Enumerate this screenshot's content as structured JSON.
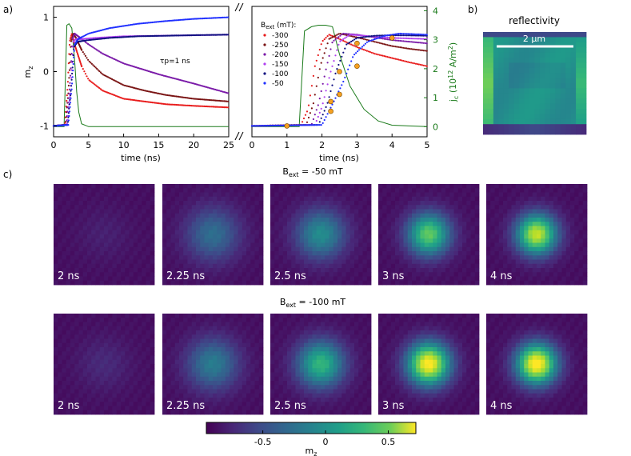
{
  "panels": {
    "a": "a)",
    "b": "b)",
    "c": "c)"
  },
  "chart_data": [
    {
      "type": "scatter",
      "panel": "a-left",
      "xlabel": "time (ns)",
      "ylabel": "m_z",
      "xlim": [
        0,
        25
      ],
      "ylim": [
        -1.2,
        1.2
      ],
      "x_ticks": [
        "0",
        "5",
        "10",
        "15",
        "20",
        "25"
      ],
      "y_ticks": [
        "-1",
        "0",
        "1"
      ],
      "annotation": "τp=1 ns",
      "series": [
        {
          "id": "b300",
          "color": "#e81c1c",
          "x": [
            0,
            1.6,
            2.0,
            2.3,
            2.6,
            3,
            4,
            5,
            7,
            10,
            13,
            16,
            20,
            25
          ],
          "y": [
            -1,
            -0.98,
            -0.3,
            0.55,
            0.7,
            0.5,
            0.1,
            -0.15,
            -0.35,
            -0.5,
            -0.55,
            -0.6,
            -0.63,
            -0.66
          ]
        },
        {
          "id": "b250",
          "color": "#7a1414",
          "x": [
            0,
            1.7,
            2.1,
            2.5,
            2.8,
            3.2,
            4,
            5,
            7,
            10,
            13,
            16,
            20,
            25
          ],
          "y": [
            -1,
            -0.98,
            -0.4,
            0.55,
            0.7,
            0.62,
            0.4,
            0.2,
            -0.05,
            -0.25,
            -0.35,
            -0.43,
            -0.5,
            -0.55
          ]
        },
        {
          "id": "b200",
          "color": "#7a1aa8",
          "x": [
            0,
            1.8,
            2.3,
            2.7,
            3.0,
            3.5,
            5,
            7,
            10,
            15,
            20,
            25
          ],
          "y": [
            -1,
            -0.98,
            -0.3,
            0.6,
            0.7,
            0.65,
            0.5,
            0.33,
            0.15,
            -0.05,
            -0.22,
            -0.4
          ]
        },
        {
          "id": "b150",
          "color": "#b040f0",
          "x": [
            0,
            1.9,
            2.4,
            2.8,
            3.2,
            4,
            6,
            10,
            15,
            20,
            25
          ],
          "y": [
            -1,
            -0.98,
            -0.4,
            0.55,
            0.6,
            0.6,
            0.62,
            0.65,
            0.66,
            0.67,
            0.68
          ]
        },
        {
          "id": "b100",
          "color": "#101080",
          "x": [
            0,
            2.0,
            2.5,
            2.9,
            3.4,
            5,
            8,
            12,
            16,
            20,
            25
          ],
          "y": [
            -1,
            -0.98,
            -0.3,
            0.45,
            0.55,
            0.58,
            0.62,
            0.65,
            0.66,
            0.67,
            0.68
          ]
        },
        {
          "id": "b50",
          "color": "#2030ff",
          "x": [
            0,
            2.1,
            2.6,
            3.0,
            3.5,
            5,
            8,
            12,
            16,
            20,
            25
          ],
          "y": [
            -1,
            -0.98,
            -0.3,
            0.5,
            0.6,
            0.7,
            0.8,
            0.88,
            0.93,
            0.97,
            1.0
          ]
        }
      ],
      "current_pulse": {
        "color": "#1a7a1a",
        "x": [
          0,
          1.5,
          1.9,
          2.2,
          2.6,
          3.0,
          3.3,
          3.6,
          4.0,
          5,
          10,
          15,
          20,
          25
        ],
        "jc": [
          0,
          0,
          3.5,
          3.55,
          3.4,
          2.3,
          1.2,
          0.5,
          0.1,
          0.0,
          0.0,
          0.0,
          0.0,
          0.0
        ]
      }
    },
    {
      "type": "scatter",
      "panel": "a-right",
      "xlabel": "time (ns)",
      "ylabel_right": "j_c (10^12 A/m^2)",
      "xlim": [
        0,
        5
      ],
      "jlim": [
        -0.35,
        4.15
      ],
      "x_ticks": [
        "0",
        "1",
        "2",
        "3",
        "4",
        "5"
      ],
      "jc_ticks": [
        "0",
        "1",
        "2",
        "3",
        "4"
      ],
      "legend_title": "B_ext (mT):",
      "legend": [
        "-300",
        "-250",
        "-200",
        "-150",
        "-100",
        "-50"
      ],
      "series": [
        {
          "id": "b300",
          "color": "#e81c1c",
          "x": [
            0,
            1.4,
            1.6,
            1.8,
            2.0,
            2.2,
            2.5,
            3,
            3.5,
            4,
            4.5,
            5
          ],
          "y": [
            -1,
            -0.98,
            -0.7,
            0.1,
            0.55,
            0.68,
            0.6,
            0.45,
            0.33,
            0.25,
            0.17,
            0.1
          ]
        },
        {
          "id": "b250",
          "color": "#7a1414",
          "x": [
            0,
            1.55,
            1.75,
            1.95,
            2.2,
            2.5,
            3,
            3.5,
            4,
            4.5,
            5
          ],
          "y": [
            -1,
            -0.98,
            -0.6,
            0.1,
            0.6,
            0.7,
            0.63,
            0.55,
            0.47,
            0.42,
            0.38
          ]
        },
        {
          "id": "b200",
          "color": "#7a1aa8",
          "x": [
            0,
            1.7,
            1.9,
            2.1,
            2.3,
            2.6,
            3,
            3.5,
            4,
            4.5,
            5
          ],
          "y": [
            -1,
            -0.98,
            -0.6,
            0.0,
            0.55,
            0.7,
            0.68,
            0.63,
            0.58,
            0.55,
            0.52
          ]
        },
        {
          "id": "b150",
          "color": "#b040f0",
          "x": [
            0,
            1.8,
            2.0,
            2.25,
            2.5,
            2.8,
            3.2,
            4,
            5
          ],
          "y": [
            -1,
            -0.98,
            -0.65,
            0.0,
            0.55,
            0.68,
            0.66,
            0.62,
            0.6
          ]
        },
        {
          "id": "b100",
          "color": "#101080",
          "x": [
            0,
            1.9,
            2.15,
            2.4,
            2.7,
            3.0,
            3.5,
            4,
            5
          ],
          "y": [
            -1,
            -0.98,
            -0.6,
            0.0,
            0.5,
            0.62,
            0.66,
            0.67,
            0.66
          ]
        },
        {
          "id": "b50",
          "color": "#2030ff",
          "x": [
            0,
            2.0,
            2.3,
            2.6,
            2.9,
            3.3,
            3.8,
            4.2,
            5
          ],
          "y": [
            -1,
            -0.98,
            -0.6,
            -0.2,
            0.3,
            0.55,
            0.66,
            0.7,
            0.68
          ]
        }
      ],
      "markers": {
        "color": "#f5a020",
        "points": [
          [
            1,
            -1
          ],
          [
            2.25,
            -0.73
          ],
          [
            2.5,
            -0.42
          ],
          [
            3,
            0.1
          ],
          [
            4,
            0.62
          ],
          [
            2.25,
            -0.55
          ],
          [
            2.5,
            0.0
          ],
          [
            3,
            0.52
          ]
        ]
      },
      "current_pulse": {
        "color": "#1a7a1a",
        "x": [
          0,
          1.35,
          1.5,
          1.7,
          1.9,
          2.1,
          2.3,
          2.5,
          2.8,
          3.2,
          3.6,
          4.0,
          5
        ],
        "jc": [
          0,
          0,
          3.3,
          3.45,
          3.5,
          3.5,
          3.45,
          2.5,
          1.4,
          0.6,
          0.2,
          0.05,
          0.0
        ]
      }
    },
    {
      "type": "heatmap",
      "panel": "b",
      "title": "reflectivity",
      "scale_label": "2 µm"
    },
    {
      "type": "heatmap",
      "panel": "c",
      "rows": [
        {
          "label_main": "B",
          "label_sub": "ext",
          "label_rest": " = -50 mT",
          "times": [
            "2 ns",
            "2.25 ns",
            "2.5 ns",
            "3 ns",
            "4 ns"
          ],
          "intensity": [
            0.05,
            0.32,
            0.45,
            0.72,
            0.88
          ],
          "spread": [
            0.25,
            0.25,
            0.23,
            0.2,
            0.19
          ]
        },
        {
          "label_main": "B",
          "label_sub": "ext",
          "label_rest": " = -100 mT",
          "times": [
            "2 ns",
            "2.25 ns",
            "2.5 ns",
            "3 ns",
            "4 ns"
          ],
          "intensity": [
            0.08,
            0.38,
            0.62,
            0.98,
            1.0
          ],
          "spread": [
            0.25,
            0.24,
            0.22,
            0.2,
            0.19
          ]
        }
      ],
      "colorbar": {
        "label": "m_z",
        "ticks": [
          "-0.5",
          "0",
          "0.5"
        ],
        "range": [
          -0.95,
          0.72
        ]
      }
    }
  ],
  "colors": {
    "axis": "#000000",
    "pulse": "#1a7a1a",
    "background_map": "#440154",
    "scale_bar": "#ffffff"
  }
}
